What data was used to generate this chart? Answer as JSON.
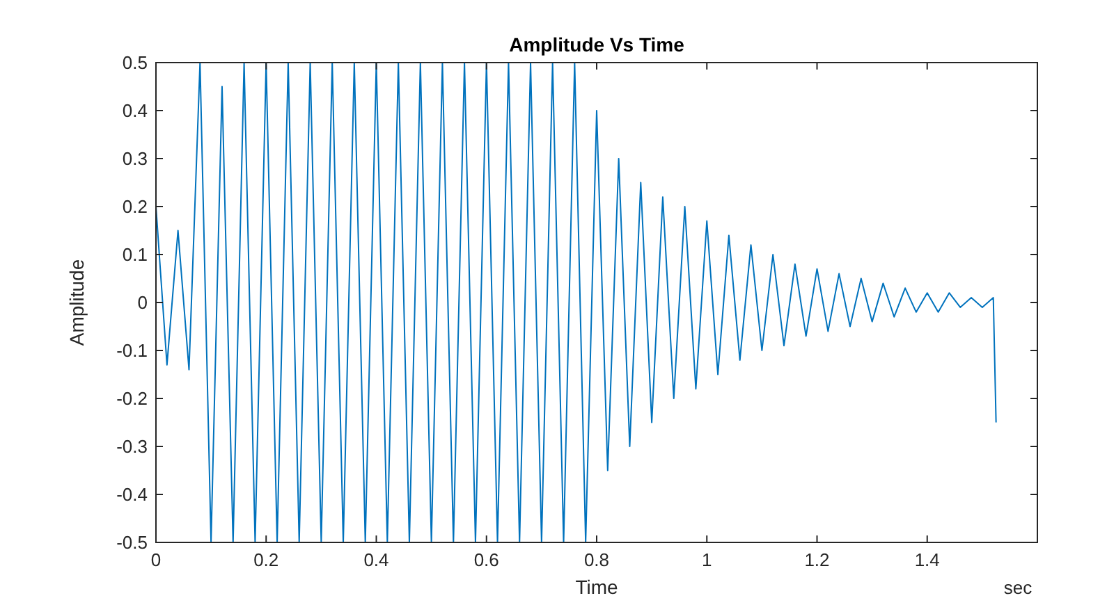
{
  "chart_data": {
    "type": "line",
    "title": "Amplitude Vs Time",
    "xlabel": "Time",
    "ylabel": "Amplitude",
    "annotations": [
      "sec"
    ],
    "xlim": [
      0,
      1.6
    ],
    "ylim": [
      -0.5,
      0.5
    ],
    "xticks": [
      0,
      0.2,
      0.4,
      0.6,
      0.8,
      1,
      1.2,
      1.4
    ],
    "yticks": [
      -0.5,
      -0.4,
      -0.3,
      -0.2,
      -0.1,
      0,
      0.1,
      0.2,
      0.3,
      0.4,
      0.5
    ],
    "grid": false,
    "marker": "none",
    "line_style": "solid",
    "series": [
      {
        "color": "#0072bd",
        "x": [
          0,
          0.02,
          0.04,
          0.06,
          0.08,
          0.1,
          0.12,
          0.14,
          0.16,
          0.18,
          0.2,
          0.22,
          0.24,
          0.26,
          0.28,
          0.3,
          0.32,
          0.34,
          0.36,
          0.38,
          0.4,
          0.42,
          0.44,
          0.46,
          0.48,
          0.5,
          0.52,
          0.54,
          0.56,
          0.58,
          0.6,
          0.62,
          0.64,
          0.66,
          0.68,
          0.7,
          0.72,
          0.74,
          0.76,
          0.78,
          0.8,
          0.82,
          0.84,
          0.86,
          0.88,
          0.9,
          0.92,
          0.94,
          0.96,
          0.98,
          1,
          1.02,
          1.04,
          1.06,
          1.08,
          1.1,
          1.12,
          1.14,
          1.16,
          1.18,
          1.2,
          1.22,
          1.24,
          1.26,
          1.28,
          1.3,
          1.32,
          1.34,
          1.36,
          1.38,
          1.4,
          1.42,
          1.44,
          1.46,
          1.48,
          1.5,
          1.52,
          1.525
        ],
        "values": [
          0.2,
          -0.13,
          0.15,
          -0.14,
          0.5,
          -0.5,
          0.45,
          -0.5,
          0.5,
          -0.5,
          0.5,
          -0.5,
          0.5,
          -0.5,
          0.5,
          -0.5,
          0.5,
          -0.5,
          0.5,
          -0.5,
          0.5,
          -0.5,
          0.5,
          -0.5,
          0.5,
          -0.5,
          0.5,
          -0.5,
          0.5,
          -0.5,
          0.5,
          -0.5,
          0.5,
          -0.5,
          0.5,
          -0.5,
          0.5,
          -0.5,
          0.5,
          -0.5,
          0.4,
          -0.35,
          0.3,
          -0.3,
          0.25,
          -0.25,
          0.22,
          -0.2,
          0.2,
          -0.18,
          0.17,
          -0.15,
          0.14,
          -0.12,
          0.12,
          -0.1,
          0.1,
          -0.09,
          0.08,
          -0.07,
          0.07,
          -0.06,
          0.06,
          -0.05,
          0.05,
          -0.04,
          0.04,
          -0.03,
          0.03,
          -0.02,
          0.02,
          -0.02,
          0.02,
          -0.01,
          0.01,
          -0.01,
          0.01,
          -0.25
        ]
      }
    ]
  }
}
